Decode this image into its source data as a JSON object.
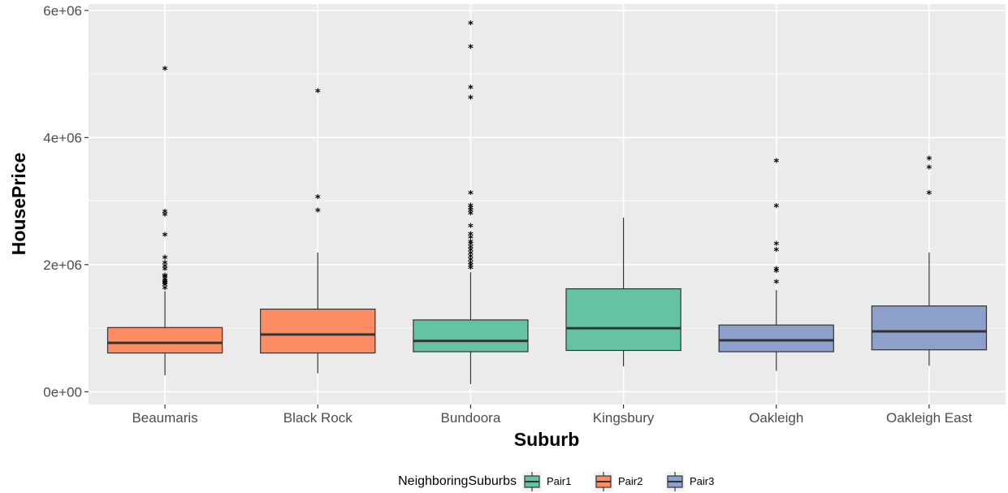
{
  "chart_data": {
    "type": "boxplot",
    "xlabel": "Suburb",
    "ylabel": "HousePrice",
    "ylim": [
      -200000,
      6100000
    ],
    "yticks": [
      {
        "value": 0,
        "label": "0e+00"
      },
      {
        "value": 2000000,
        "label": "2e+06"
      },
      {
        "value": 4000000,
        "label": "4e+06"
      },
      {
        "value": 6000000,
        "label": "6e+06"
      }
    ],
    "grid": true,
    "legend": {
      "title": "NeighboringSuburbs",
      "placement": "bottom",
      "entries": [
        {
          "label": "Pair1",
          "color": "#66c2a5"
        },
        {
          "label": "Pair2",
          "color": "#fc8d62"
        },
        {
          "label": "Pair3",
          "color": "#8da0cb"
        }
      ]
    },
    "categories": [
      "Beaumaris",
      "Black Rock",
      "Bundoora",
      "Kingsbury",
      "Oakleigh",
      "Oakleigh East"
    ],
    "boxes": [
      {
        "category": "Beaumaris",
        "group": "Pair2",
        "color": "#fc8d62",
        "min": 260000,
        "q1": 610000,
        "median": 770000,
        "q3": 1010000,
        "max": 1580000,
        "outliers": [
          1600000,
          1650000,
          1680000,
          1700000,
          1720000,
          1750000,
          1780000,
          1800000,
          1900000,
          1950000,
          2000000,
          2080000,
          2440000,
          2760000,
          2800000,
          5050000
        ]
      },
      {
        "category": "Black Rock",
        "group": "Pair2",
        "color": "#fc8d62",
        "min": 290000,
        "q1": 610000,
        "median": 900000,
        "q3": 1300000,
        "max": 2190000,
        "outliers": [
          2820000,
          3030000,
          4700000
        ]
      },
      {
        "category": "Bundoora",
        "group": "Pair1",
        "color": "#66c2a5",
        "min": 120000,
        "q1": 630000,
        "median": 800000,
        "q3": 1130000,
        "max": 1880000,
        "outliers": [
          1920000,
          1960000,
          2000000,
          2050000,
          2100000,
          2150000,
          2200000,
          2250000,
          2300000,
          2330000,
          2400000,
          2450000,
          2580000,
          2780000,
          2820000,
          2860000,
          2900000,
          3100000,
          4600000,
          4760000,
          5400000,
          5770000
        ]
      },
      {
        "category": "Kingsbury",
        "group": "Pair1",
        "color": "#66c2a5",
        "min": 400000,
        "q1": 650000,
        "median": 1000000,
        "q3": 1620000,
        "max": 2740000,
        "outliers": []
      },
      {
        "category": "Oakleigh",
        "group": "Pair3",
        "color": "#8da0cb",
        "min": 330000,
        "q1": 630000,
        "median": 810000,
        "q3": 1050000,
        "max": 1600000,
        "outliers": [
          1700000,
          1870000,
          1900000,
          2200000,
          2300000,
          2890000,
          3600000
        ]
      },
      {
        "category": "Oakleigh East",
        "group": "Pair3",
        "color": "#8da0cb",
        "min": 410000,
        "q1": 660000,
        "median": 950000,
        "q3": 1350000,
        "max": 2190000,
        "outliers": [
          3100000,
          3500000,
          3640000
        ]
      }
    ]
  }
}
